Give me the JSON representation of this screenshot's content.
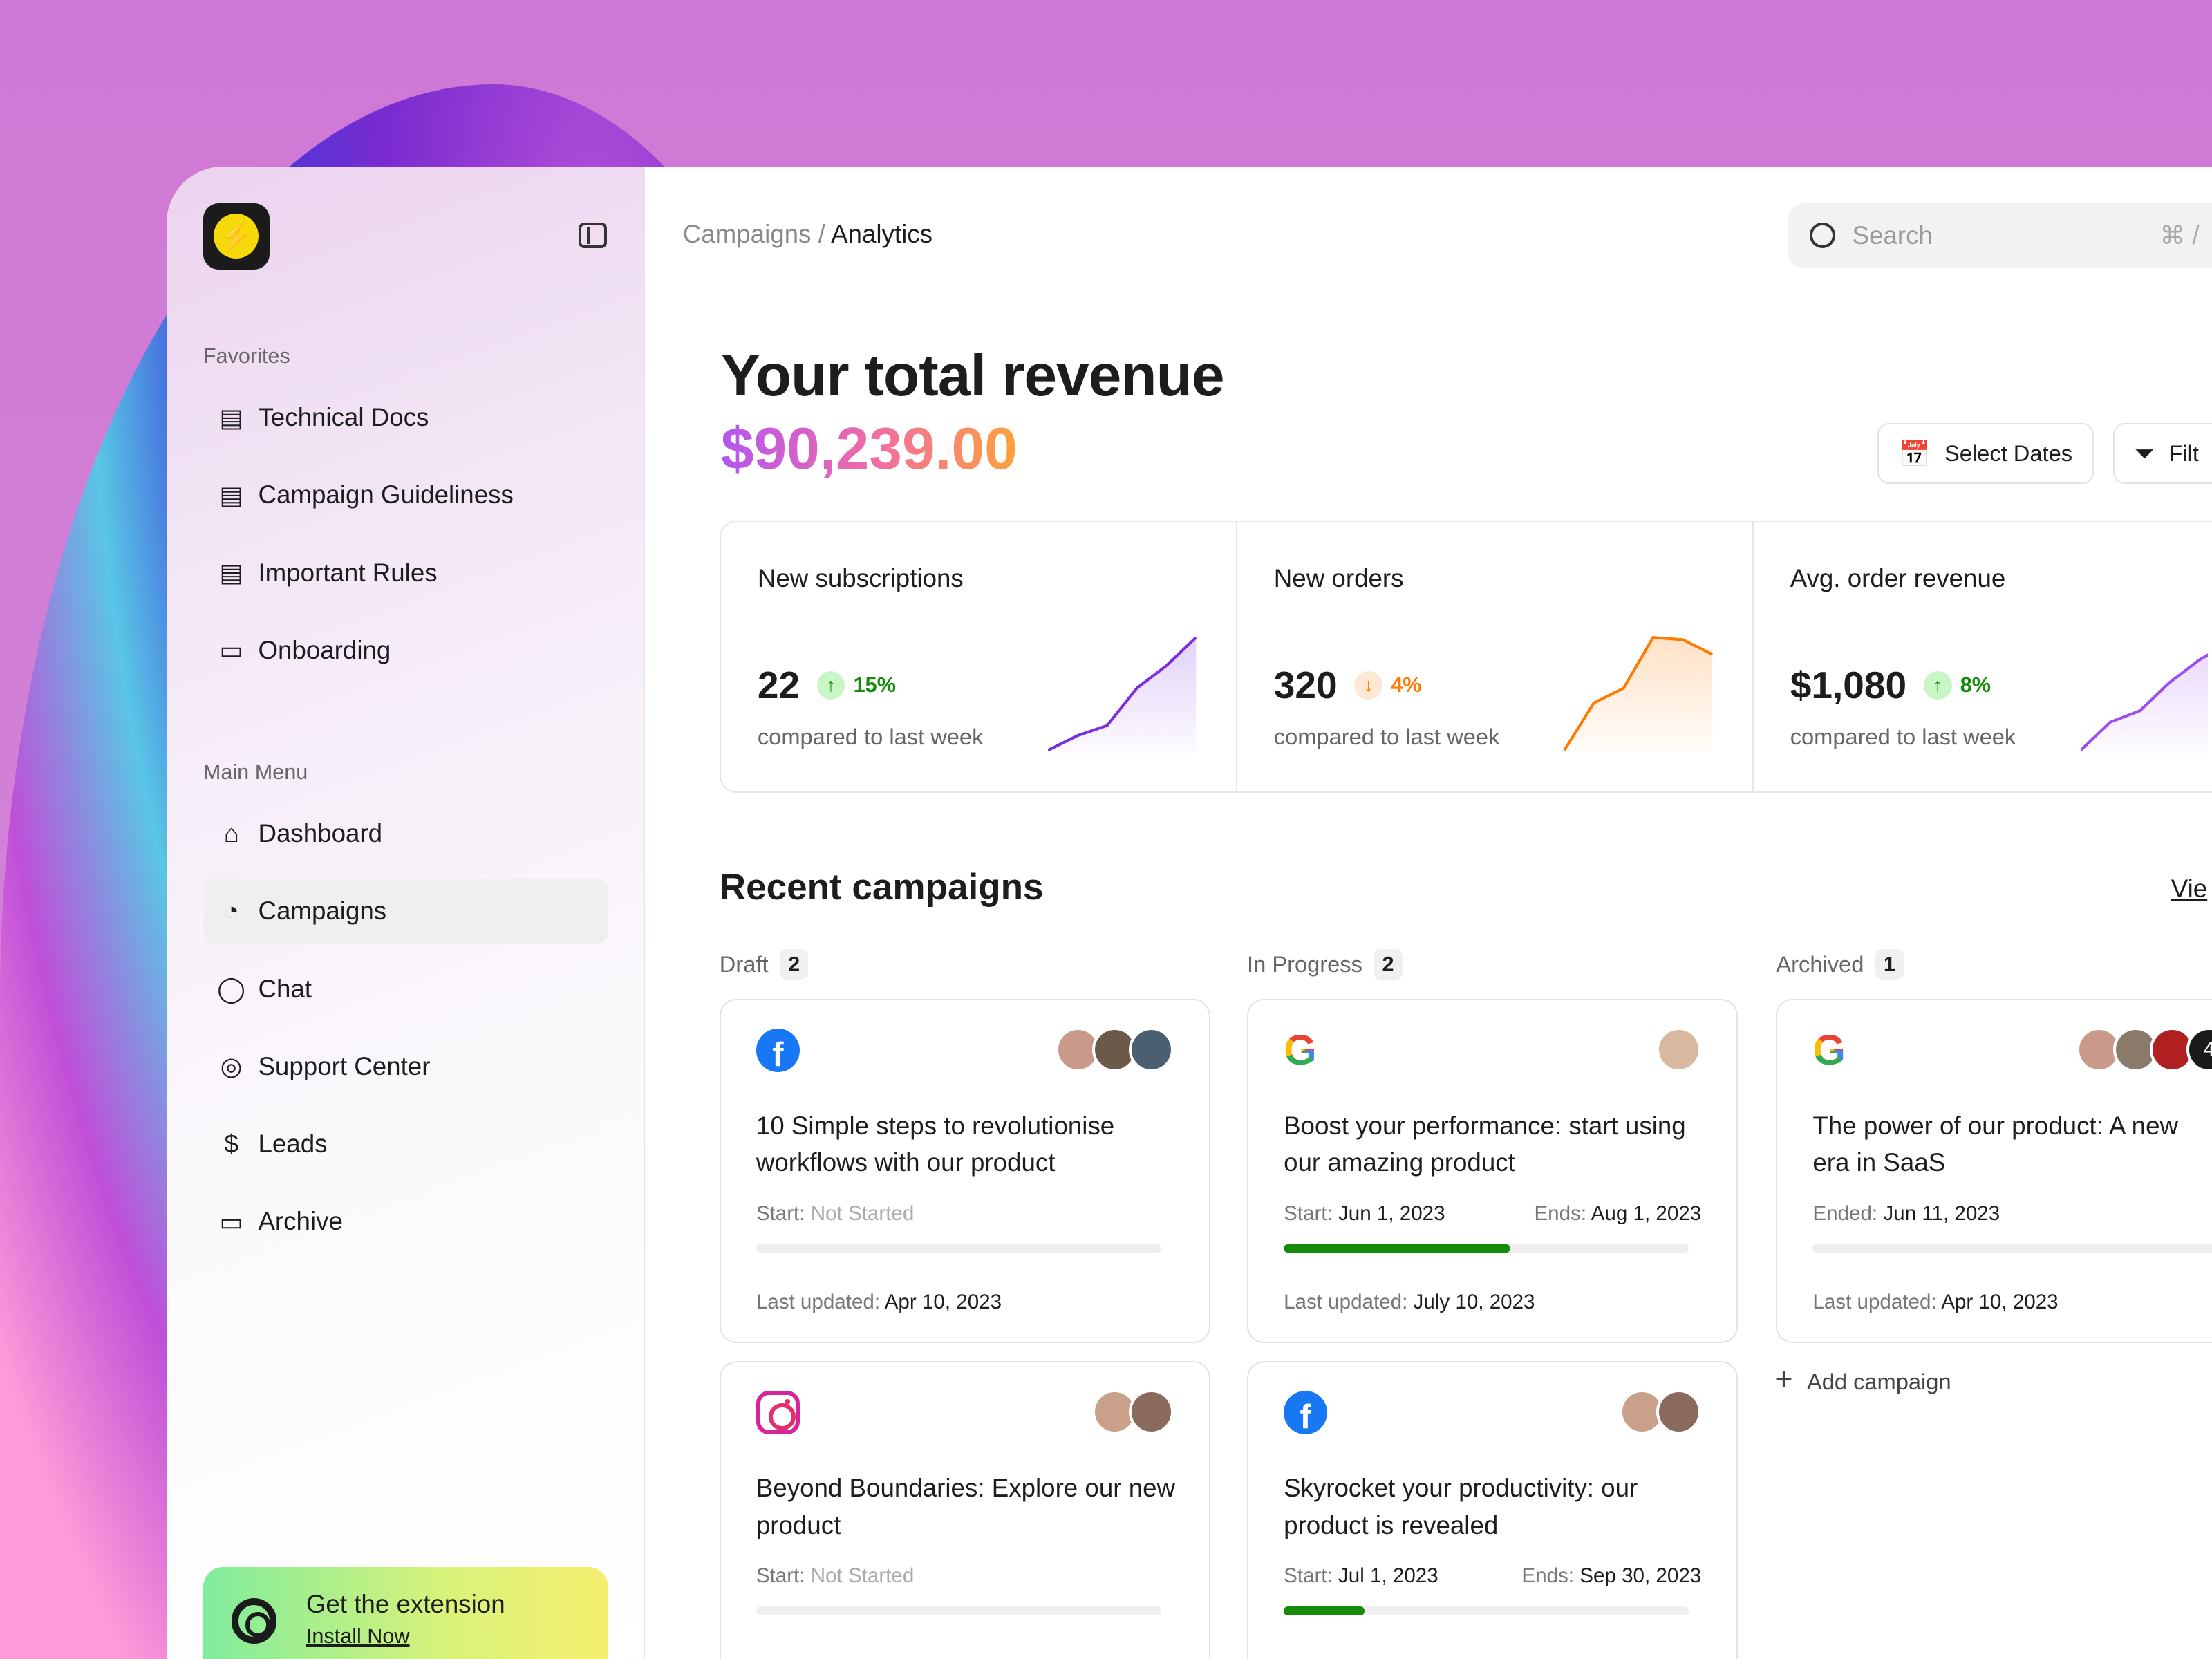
{
  "sidebar": {
    "favorites_label": "Favorites",
    "favorites": [
      {
        "label": "Technical Docs",
        "icon": "document-icon"
      },
      {
        "label": "Campaign Guideliness",
        "icon": "document-icon"
      },
      {
        "label": "Important Rules",
        "icon": "document-icon"
      },
      {
        "label": "Onboarding",
        "icon": "video-icon"
      }
    ],
    "main_menu_label": "Main Menu",
    "menu": [
      {
        "label": "Dashboard",
        "icon": "home-icon"
      },
      {
        "label": "Campaigns",
        "icon": "campaign-icon",
        "active": true
      },
      {
        "label": "Chat",
        "icon": "chat-icon"
      },
      {
        "label": "Support Center",
        "icon": "lifebuoy-icon"
      },
      {
        "label": "Leads",
        "icon": "dollar-icon"
      },
      {
        "label": "Archive",
        "icon": "folder-icon"
      }
    ],
    "extension": {
      "title": "Get the extension",
      "link": "Install Now"
    }
  },
  "header": {
    "breadcrumb": [
      "Campaigns",
      "Analytics"
    ],
    "search_placeholder": "Search",
    "search_shortcut": "⌘ /"
  },
  "revenue": {
    "title": "Your total revenue",
    "amount": "$90,239.00"
  },
  "toolbar": {
    "select_dates": "Select Dates",
    "filter": "Filt"
  },
  "stats": [
    {
      "label": "New subscriptions",
      "value": "22",
      "change": "15%",
      "direction": "up",
      "compare": "compared to last week",
      "color": "#7b2ee0"
    },
    {
      "label": "New orders",
      "value": "320",
      "change": "4%",
      "direction": "down",
      "compare": "compared to last week",
      "color": "#ff7a00"
    },
    {
      "label": "Avg. order revenue",
      "value": "$1,080",
      "change": "8%",
      "direction": "up",
      "compare": "compared to last week",
      "color": "#9b4df0"
    }
  ],
  "campaigns": {
    "title": "Recent campaigns",
    "view_all": "Vie",
    "columns": [
      {
        "label": "Draft",
        "count": "2",
        "cards": [
          {
            "brand": "facebook",
            "title": "10 Simple steps to revolutionise workflows with our product",
            "start_label": "Start:",
            "start": "Not Started",
            "progress": 0,
            "updated_label": "Last updated:",
            "updated": "Apr 10, 2023"
          },
          {
            "brand": "instagram",
            "title": "Beyond Boundaries: Explore our new product",
            "start_label": "Start:",
            "start": "Not Started",
            "progress": 0
          }
        ]
      },
      {
        "label": "In Progress",
        "count": "2",
        "cards": [
          {
            "brand": "google",
            "title": "Boost your performance: start using our amazing product",
            "start_label": "Start:",
            "start": "Jun 1, 2023",
            "end_label": "Ends:",
            "end": "Aug 1, 2023",
            "progress": 56,
            "updated_label": "Last updated:",
            "updated": "July 10, 2023"
          },
          {
            "brand": "facebook",
            "title": "Skyrocket your productivity: our product is revealed",
            "start_label": "Start:",
            "start": "Jul 1, 2023",
            "end_label": "Ends:",
            "end": "Sep 30, 2023",
            "progress": 20
          }
        ]
      },
      {
        "label": "Archived",
        "count": "1",
        "cards": [
          {
            "brand": "google",
            "title": "The power of our product: A new era in SaaS",
            "start_label": "Ended:",
            "start": "Jun 11, 2023",
            "progress": 0,
            "updated_label": "Last updated:",
            "updated": "Apr 10, 2023",
            "avatar_more": "4"
          }
        ]
      }
    ],
    "add_label": "Add campaign"
  },
  "colors": {
    "success": "#168a0b",
    "warning": "#ff7a00",
    "accent": "#7b2ee0"
  }
}
